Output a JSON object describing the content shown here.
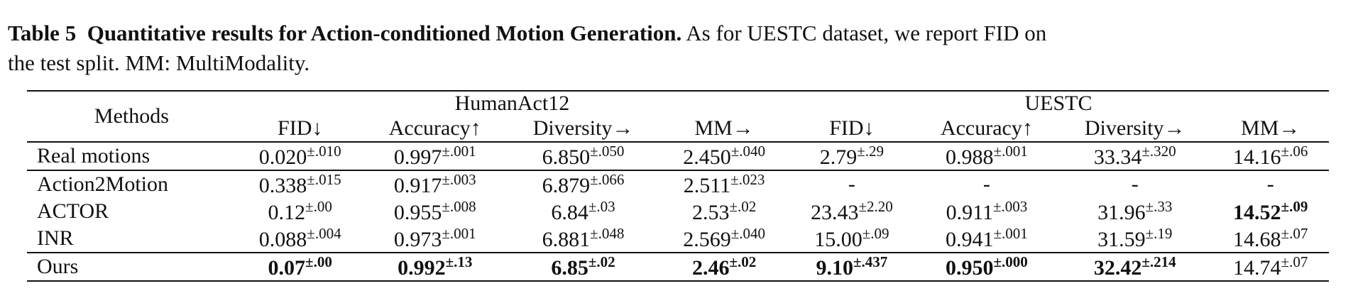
{
  "caption": {
    "label": "Table 5",
    "title": "Quantitative results for Action-conditioned Motion Generation.",
    "text_line1": "As for UESTC dataset, we report FID on",
    "text_line2": "the test split. MM: MultiModality."
  },
  "table": {
    "methods_header": "Methods",
    "groups": [
      "HumanAct12",
      "UESTC"
    ],
    "columns": [
      "FID↓",
      "Accuracy↑",
      "Diversity→",
      "MM→",
      "FID↓",
      "Accuracy↑",
      "Diversity→",
      "MM→"
    ],
    "rows": [
      {
        "method": "Real motions",
        "cells": [
          {
            "v": "0.020",
            "s": "±.010",
            "bold": false
          },
          {
            "v": "0.997",
            "s": "±.001",
            "bold": false
          },
          {
            "v": "6.850",
            "s": "±.050",
            "bold": false
          },
          {
            "v": "2.450",
            "s": "±.040",
            "bold": false
          },
          {
            "v": "2.79",
            "s": "±.29",
            "bold": false
          },
          {
            "v": "0.988",
            "s": "±.001",
            "bold": false
          },
          {
            "v": "33.34",
            "s": "±.320",
            "bold": false
          },
          {
            "v": "14.16",
            "s": "±.06",
            "bold": false
          }
        ]
      },
      {
        "method": "Action2Motion",
        "cells": [
          {
            "v": "0.338",
            "s": "±.015",
            "bold": false
          },
          {
            "v": "0.917",
            "s": "±.003",
            "bold": false
          },
          {
            "v": "6.879",
            "s": "±.066",
            "bold": false
          },
          {
            "v": "2.511",
            "s": "±.023",
            "bold": false
          },
          {
            "v": "-",
            "s": "",
            "bold": false
          },
          {
            "v": "-",
            "s": "",
            "bold": false
          },
          {
            "v": "-",
            "s": "",
            "bold": false
          },
          {
            "v": "-",
            "s": "",
            "bold": false
          }
        ]
      },
      {
        "method": "ACTOR",
        "cells": [
          {
            "v": "0.12",
            "s": "±.00",
            "bold": false
          },
          {
            "v": "0.955",
            "s": "±.008",
            "bold": false
          },
          {
            "v": "6.84",
            "s": "±.03",
            "bold": false
          },
          {
            "v": "2.53",
            "s": "±.02",
            "bold": false
          },
          {
            "v": "23.43",
            "s": "±2.20",
            "bold": false
          },
          {
            "v": "0.911",
            "s": "±.003",
            "bold": false
          },
          {
            "v": "31.96",
            "s": "±.33",
            "bold": false
          },
          {
            "v": "14.52",
            "s": "±.09",
            "bold": true
          }
        ]
      },
      {
        "method": "INR",
        "cells": [
          {
            "v": "0.088",
            "s": "±.004",
            "bold": false
          },
          {
            "v": "0.973",
            "s": "±.001",
            "bold": false
          },
          {
            "v": "6.881",
            "s": "±.048",
            "bold": false
          },
          {
            "v": "2.569",
            "s": "±.040",
            "bold": false
          },
          {
            "v": "15.00",
            "s": "±.09",
            "bold": false
          },
          {
            "v": "0.941",
            "s": "±.001",
            "bold": false
          },
          {
            "v": "31.59",
            "s": "±.19",
            "bold": false
          },
          {
            "v": "14.68",
            "s": "±.07",
            "bold": false
          }
        ]
      },
      {
        "method": "Ours",
        "cells": [
          {
            "v": "0.07",
            "s": "±.00",
            "bold": true
          },
          {
            "v": "0.992",
            "s": "±.13",
            "bold": true
          },
          {
            "v": "6.85",
            "s": "±.02",
            "bold": true
          },
          {
            "v": "2.46",
            "s": "±.02",
            "bold": true
          },
          {
            "v": "9.10",
            "s": "±.437",
            "bold": true
          },
          {
            "v": "0.950",
            "s": "±.000",
            "bold": true
          },
          {
            "v": "32.42",
            "s": "±.214",
            "bold": true
          },
          {
            "v": "14.74",
            "s": "±.07",
            "bold": false
          }
        ]
      }
    ]
  }
}
